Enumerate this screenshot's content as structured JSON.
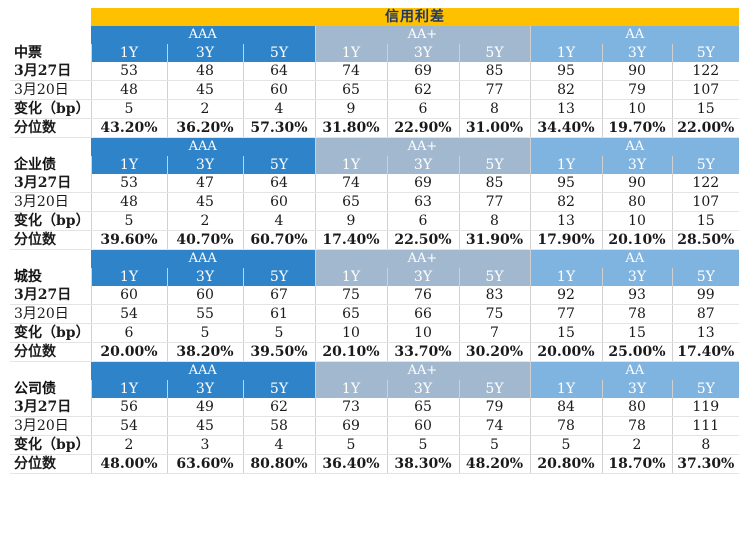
{
  "title": "信用利差",
  "blocks": [
    {
      "name": "中票",
      "grades": [
        "AAA",
        "AA+",
        "AA"
      ],
      "tenors": [
        "1Y",
        "3Y",
        "5Y",
        "1Y",
        "3Y",
        "5Y",
        "1Y",
        "3Y",
        "5Y"
      ],
      "rows": [
        {
          "label": "3月27日",
          "values": [
            "53",
            "48",
            "64",
            "74",
            "69",
            "85",
            "95",
            "90",
            "122"
          ]
        },
        {
          "label": "3月20日",
          "values": [
            "48",
            "45",
            "60",
            "65",
            "62",
            "77",
            "82",
            "79",
            "107"
          ]
        },
        {
          "label": "变化（bp）",
          "values": [
            "5",
            "2",
            "4",
            "9",
            "6",
            "8",
            "13",
            "10",
            "15"
          ]
        },
        {
          "label": "分位数",
          "values": [
            "43.20%",
            "36.20%",
            "57.30%",
            "31.80%",
            "22.90%",
            "31.00%",
            "34.40%",
            "19.70%",
            "22.00%"
          ]
        }
      ]
    },
    {
      "name": "企业债",
      "grades": [
        "AAA",
        "AA+",
        "AA"
      ],
      "tenors": [
        "1Y",
        "3Y",
        "5Y",
        "1Y",
        "3Y",
        "5Y",
        "1Y",
        "3Y",
        "5Y"
      ],
      "rows": [
        {
          "label": "3月27日",
          "values": [
            "53",
            "47",
            "64",
            "74",
            "69",
            "85",
            "95",
            "90",
            "122"
          ]
        },
        {
          "label": "3月20日",
          "values": [
            "48",
            "45",
            "60",
            "65",
            "63",
            "77",
            "82",
            "80",
            "107"
          ]
        },
        {
          "label": "变化（bp）",
          "values": [
            "5",
            "2",
            "4",
            "9",
            "6",
            "8",
            "13",
            "10",
            "15"
          ]
        },
        {
          "label": "分位数",
          "values": [
            "39.60%",
            "40.70%",
            "60.70%",
            "17.40%",
            "22.50%",
            "31.90%",
            "17.90%",
            "20.10%",
            "28.50%"
          ]
        }
      ]
    },
    {
      "name": "城投",
      "grades": [
        "AAA",
        "AA+",
        "AA"
      ],
      "tenors": [
        "1Y",
        "3Y",
        "5Y",
        "1Y",
        "3Y",
        "5Y",
        "1Y",
        "3Y",
        "5Y"
      ],
      "rows": [
        {
          "label": "3月27日",
          "values": [
            "60",
            "60",
            "67",
            "75",
            "76",
            "83",
            "92",
            "93",
            "99"
          ]
        },
        {
          "label": "3月20日",
          "values": [
            "54",
            "55",
            "61",
            "65",
            "66",
            "75",
            "77",
            "78",
            "87"
          ]
        },
        {
          "label": "变化（bp）",
          "values": [
            "6",
            "5",
            "5",
            "10",
            "10",
            "7",
            "15",
            "15",
            "13"
          ]
        },
        {
          "label": "分位数",
          "values": [
            "20.00%",
            "38.20%",
            "39.50%",
            "20.10%",
            "33.70%",
            "30.20%",
            "20.00%",
            "25.00%",
            "17.40%"
          ]
        }
      ]
    },
    {
      "name": "公司债",
      "grades": [
        "AAA",
        "AA+",
        "AA"
      ],
      "tenors": [
        "1Y",
        "3Y",
        "5Y",
        "1Y",
        "3Y",
        "5Y",
        "1Y",
        "3Y",
        "5Y"
      ],
      "rows": [
        {
          "label": "3月27日",
          "values": [
            "56",
            "49",
            "62",
            "73",
            "65",
            "79",
            "84",
            "80",
            "119"
          ]
        },
        {
          "label": "3月20日",
          "values": [
            "54",
            "45",
            "58",
            "69",
            "60",
            "74",
            "78",
            "78",
            "111"
          ]
        },
        {
          "label": "变化（bp）",
          "values": [
            "2",
            "3",
            "4",
            "5",
            "5",
            "5",
            "5",
            "2",
            "8"
          ]
        },
        {
          "label": "分位数",
          "values": [
            "48.00%",
            "63.60%",
            "80.80%",
            "36.40%",
            "38.30%",
            "48.20%",
            "20.80%",
            "18.70%",
            "37.30%"
          ]
        }
      ]
    }
  ]
}
